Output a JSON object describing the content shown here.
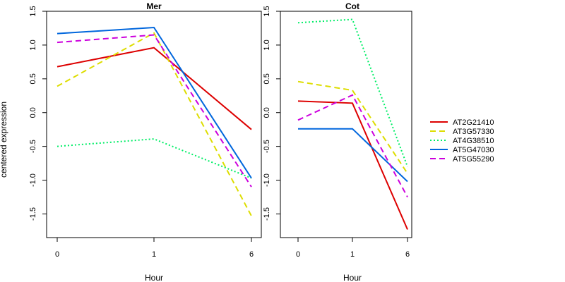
{
  "chart_data": {
    "type": "line",
    "ylabel": "centered expression",
    "xlabel": "Hour",
    "x_ticks": [
      "0",
      "1",
      "6"
    ],
    "ylim": [
      -1.85,
      1.5
    ],
    "y_ticks": [
      "-1.5",
      "-1.0",
      "-0.5",
      "0.0",
      "0.5",
      "1.0",
      "1.5"
    ],
    "y_tick_values": [
      -1.5,
      -1.0,
      -0.5,
      0.0,
      0.5,
      1.0,
      1.5
    ],
    "grid": false,
    "legend_position": "right",
    "series_styles": [
      {
        "name": "AT2G21410",
        "color": "#dd0000",
        "dash": "solid"
      },
      {
        "name": "AT3G57330",
        "color": "#dddd00",
        "dash": "dashed"
      },
      {
        "name": "AT4G38510",
        "color": "#00ee66",
        "dash": "dotted"
      },
      {
        "name": "AT5G47030",
        "color": "#0066dd",
        "dash": "solid"
      },
      {
        "name": "AT5G55290",
        "color": "#cc00dd",
        "dash": "dashed"
      }
    ],
    "panels": [
      {
        "title": "Mer",
        "series": [
          {
            "name": "AT2G21410",
            "values": [
              0.68,
              0.96,
              -0.25
            ]
          },
          {
            "name": "AT3G57330",
            "values": [
              0.39,
              1.18,
              -1.53
            ]
          },
          {
            "name": "AT4G38510",
            "values": [
              -0.5,
              -0.39,
              -0.97
            ]
          },
          {
            "name": "AT5G47030",
            "values": [
              1.17,
              1.26,
              -0.97
            ]
          },
          {
            "name": "AT5G55290",
            "values": [
              1.04,
              1.15,
              -1.1
            ]
          }
        ]
      },
      {
        "title": "Cot",
        "series": [
          {
            "name": "AT2G21410",
            "values": [
              0.17,
              0.14,
              -1.73
            ]
          },
          {
            "name": "AT3G57330",
            "values": [
              0.46,
              0.33,
              -0.9
            ]
          },
          {
            "name": "AT4G38510",
            "values": [
              1.33,
              1.38,
              -0.8
            ]
          },
          {
            "name": "AT5G47030",
            "values": [
              -0.24,
              -0.24,
              -1.02
            ]
          },
          {
            "name": "AT5G55290",
            "values": [
              -0.11,
              0.26,
              -1.25
            ]
          }
        ]
      }
    ]
  }
}
